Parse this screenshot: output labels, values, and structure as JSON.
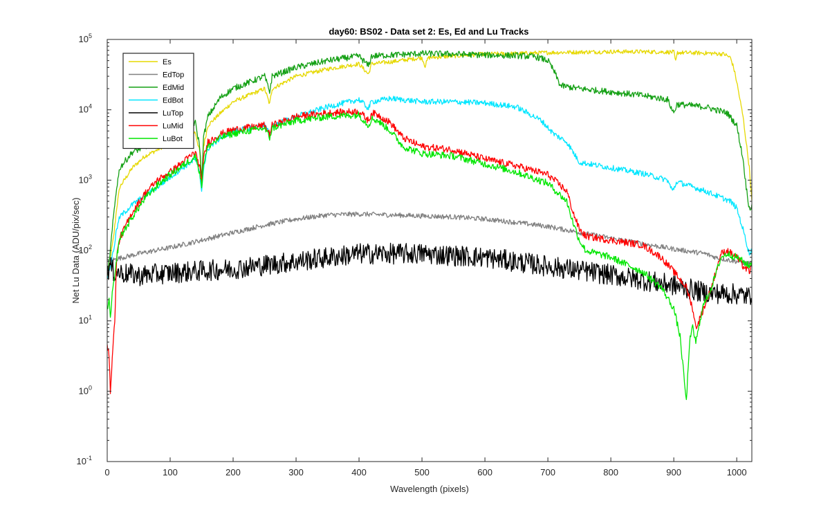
{
  "chart_data": {
    "type": "line",
    "title": "day60: BS02 - Data set 2: Es, Ed and Lu Tracks",
    "xlabel": "Wavelength (pixels)",
    "ylabel": "Net Lu Data (ADU/pix/sec)",
    "xlim": [
      0,
      1024
    ],
    "ylim": [
      0.1,
      100000
    ],
    "yscale": "log",
    "x_ticks": [
      0,
      100,
      200,
      300,
      400,
      500,
      600,
      700,
      800,
      900,
      1000
    ],
    "y_ticks": [
      {
        "value": 0.1,
        "base": "10",
        "exp": "-1"
      },
      {
        "value": 1,
        "base": "10",
        "exp": "0"
      },
      {
        "value": 10,
        "base": "10",
        "exp": "1"
      },
      {
        "value": 100,
        "base": "10",
        "exp": "2"
      },
      {
        "value": 1000,
        "base": "10",
        "exp": "3"
      },
      {
        "value": 10000,
        "base": "10",
        "exp": "4"
      },
      {
        "value": 100000,
        "base": "10",
        "exp": "5"
      }
    ],
    "grid": false,
    "legend_position": "top-left",
    "series": [
      {
        "name": "Es",
        "color": "#e6d800",
        "noise": 0.03,
        "x": [
          0,
          5,
          10,
          15,
          20,
          40,
          60,
          80,
          100,
          120,
          140,
          147,
          150,
          153,
          160,
          180,
          200,
          250,
          258,
          262,
          300,
          350,
          400,
          415,
          420,
          450,
          500,
          505,
          510,
          550,
          600,
          650,
          700,
          750,
          800,
          850,
          900,
          903,
          906,
          950,
          980,
          990,
          995,
          1000,
          1010,
          1020,
          1024
        ],
        "y": [
          40,
          80,
          150,
          400,
          800,
          1500,
          2200,
          2700,
          3500,
          4000,
          4800,
          2500,
          900,
          3000,
          6000,
          9000,
          13000,
          20000,
          12000,
          20000,
          30000,
          38000,
          45000,
          32000,
          45000,
          48000,
          55000,
          42000,
          55000,
          58000,
          62000,
          63000,
          65000,
          66000,
          67000,
          67000,
          66000,
          48000,
          65000,
          64000,
          62000,
          55000,
          40000,
          25000,
          8000,
          1500,
          500
        ]
      },
      {
        "name": "EdTop",
        "color": "#808080",
        "noise": 0.035,
        "x": [
          0,
          20,
          50,
          100,
          150,
          200,
          250,
          300,
          350,
          400,
          450,
          500,
          550,
          600,
          650,
          700,
          750,
          800,
          850,
          900,
          950,
          970,
          1000,
          1020,
          1024
        ],
        "y": [
          70,
          78,
          90,
          110,
          140,
          180,
          230,
          280,
          320,
          330,
          320,
          310,
          300,
          280,
          250,
          220,
          180,
          150,
          125,
          105,
          90,
          78,
          70,
          65,
          65
        ]
      },
      {
        "name": "EdMid",
        "color": "#14a014",
        "noise": 0.045,
        "x": [
          0,
          5,
          10,
          15,
          20,
          40,
          60,
          80,
          100,
          120,
          140,
          147,
          150,
          153,
          160,
          180,
          200,
          250,
          258,
          262,
          300,
          350,
          400,
          415,
          420,
          450,
          500,
          550,
          600,
          650,
          680,
          700,
          710,
          720,
          750,
          800,
          850,
          890,
          900,
          905,
          950,
          985,
          1000,
          1010,
          1015,
          1020,
          1024
        ],
        "y": [
          40,
          100,
          300,
          800,
          1500,
          2500,
          3000,
          3800,
          5000,
          6000,
          6500,
          3000,
          1000,
          4000,
          8000,
          15000,
          20000,
          30000,
          18000,
          30000,
          40000,
          50000,
          58000,
          42000,
          58000,
          60000,
          63000,
          62000,
          60000,
          59000,
          57000,
          50000,
          35000,
          22000,
          20000,
          18000,
          16000,
          14000,
          9000,
          12000,
          11000,
          9000,
          6000,
          2000,
          800,
          400,
          420
        ]
      },
      {
        "name": "EdBot",
        "color": "#00e6ff",
        "noise": 0.04,
        "x": [
          0,
          5,
          10,
          15,
          20,
          40,
          60,
          80,
          100,
          120,
          140,
          147,
          150,
          153,
          160,
          180,
          200,
          250,
          258,
          262,
          300,
          350,
          400,
          415,
          420,
          450,
          500,
          550,
          600,
          650,
          690,
          705,
          710,
          730,
          750,
          800,
          850,
          890,
          898,
          905,
          950,
          990,
          1000,
          1010,
          1020,
          1024
        ],
        "y": [
          40,
          60,
          100,
          200,
          300,
          450,
          600,
          800,
          1100,
          1500,
          2000,
          1200,
          700,
          1500,
          2800,
          4000,
          5000,
          6000,
          4500,
          6000,
          8000,
          11000,
          14000,
          10500,
          13000,
          14500,
          13000,
          13000,
          12500,
          11000,
          7000,
          5000,
          4500,
          3500,
          1800,
          1500,
          1250,
          1000,
          700,
          950,
          700,
          500,
          400,
          200,
          90,
          100
        ]
      },
      {
        "name": "LuTop",
        "color": "#000000",
        "noise": 0.15,
        "x": [
          0,
          5,
          10,
          50,
          100,
          200,
          300,
          400,
          500,
          600,
          700,
          800,
          850,
          900,
          950,
          1000,
          1020,
          1024
        ],
        "y": [
          50,
          60,
          50,
          44,
          48,
          55,
          70,
          90,
          90,
          80,
          60,
          45,
          38,
          32,
          25,
          24,
          22,
          25
        ]
      },
      {
        "name": "LuMid",
        "color": "#ff0000",
        "noise": 0.05,
        "x": [
          0,
          3,
          5,
          8,
          12,
          15,
          20,
          40,
          60,
          80,
          100,
          120,
          140,
          147,
          150,
          153,
          160,
          180,
          200,
          250,
          258,
          262,
          300,
          350,
          400,
          415,
          420,
          430,
          450,
          470,
          500,
          550,
          600,
          650,
          700,
          730,
          740,
          750,
          760,
          800,
          850,
          880,
          900,
          920,
          930,
          935,
          940,
          960,
          975,
          985,
          1000,
          1010,
          1020,
          1024
        ],
        "y": [
          5,
          3,
          1,
          3,
          10,
          80,
          150,
          350,
          650,
          1000,
          1300,
          1800,
          2500,
          1500,
          900,
          2000,
          3500,
          4500,
          5200,
          6000,
          4500,
          6000,
          8000,
          9000,
          9500,
          7000,
          9000,
          8500,
          6500,
          4000,
          3000,
          2700,
          2000,
          1600,
          1200,
          700,
          350,
          200,
          160,
          140,
          120,
          80,
          50,
          30,
          15,
          8,
          10,
          30,
          90,
          100,
          80,
          60,
          50,
          60
        ]
      },
      {
        "name": "LuBot",
        "color": "#00e600",
        "noise": 0.05,
        "x": [
          0,
          3,
          5,
          8,
          12,
          15,
          20,
          40,
          60,
          80,
          100,
          120,
          140,
          147,
          150,
          153,
          160,
          180,
          200,
          250,
          258,
          262,
          300,
          350,
          400,
          415,
          420,
          430,
          450,
          470,
          500,
          550,
          600,
          650,
          700,
          730,
          740,
          750,
          760,
          800,
          850,
          880,
          900,
          910,
          920,
          925,
          930,
          935,
          940,
          945,
          960,
          975,
          985,
          1000,
          1010,
          1020,
          1024
        ],
        "y": [
          15,
          20,
          10,
          25,
          40,
          80,
          150,
          300,
          550,
          850,
          1200,
          1600,
          2200,
          1300,
          800,
          1700,
          3000,
          4000,
          4600,
          5500,
          4000,
          5500,
          7000,
          8000,
          8500,
          6000,
          7500,
          7000,
          5000,
          3000,
          2400,
          2200,
          1700,
          1300,
          900,
          500,
          250,
          140,
          100,
          80,
          50,
          30,
          15,
          6,
          0.7,
          5,
          8,
          5,
          8,
          15,
          30,
          80,
          90,
          80,
          70,
          60,
          70
        ]
      }
    ]
  }
}
